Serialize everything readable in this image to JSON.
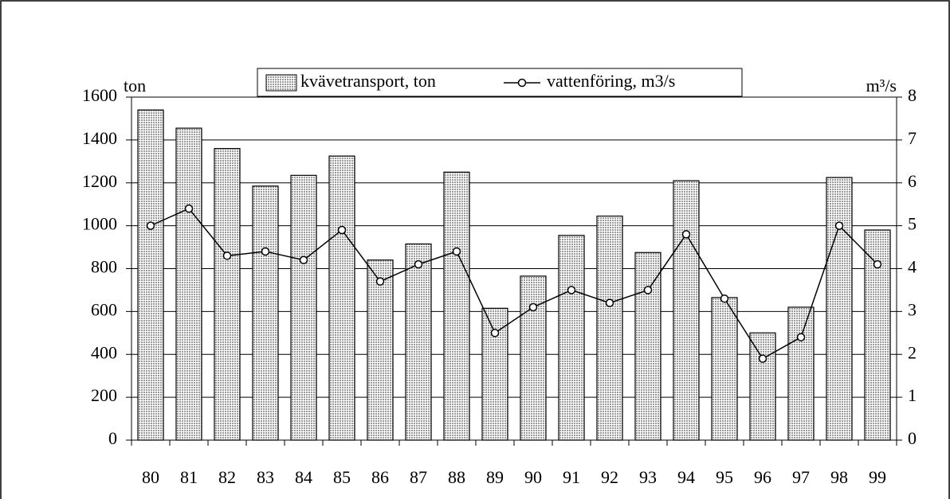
{
  "chart_data": {
    "type": "bar",
    "ylabel": "ton",
    "y2label": "m³/s",
    "categories": [
      "80",
      "81",
      "82",
      "83",
      "84",
      "85",
      "86",
      "87",
      "88",
      "89",
      "90",
      "91",
      "92",
      "93",
      "94",
      "95",
      "96",
      "97",
      "98",
      "99"
    ],
    "series": [
      {
        "name": "kvävetransport, ton",
        "type": "bar",
        "color": "#c8c8c8",
        "values": [
          1540,
          1455,
          1360,
          1185,
          1235,
          1325,
          840,
          915,
          1250,
          615,
          765,
          955,
          1045,
          875,
          1210,
          665,
          500,
          620,
          1225,
          980
        ]
      },
      {
        "name": "vattenföring, m3/s",
        "type": "line",
        "axis": "y2",
        "color": "#000000",
        "values": [
          5.0,
          5.4,
          4.3,
          4.4,
          4.2,
          4.9,
          3.7,
          4.1,
          4.4,
          2.5,
          3.1,
          3.5,
          3.2,
          3.5,
          4.8,
          3.3,
          1.9,
          2.4,
          5.0,
          4.1
        ]
      }
    ],
    "ylim": [
      0,
      1600
    ],
    "yticks": [
      0,
      200,
      400,
      600,
      800,
      1000,
      1200,
      1400,
      1600
    ],
    "y2lim": [
      0,
      8
    ],
    "y2ticks": [
      0,
      1,
      2,
      3,
      4,
      5,
      6,
      7,
      8
    ],
    "grid": true,
    "legend": "top"
  }
}
